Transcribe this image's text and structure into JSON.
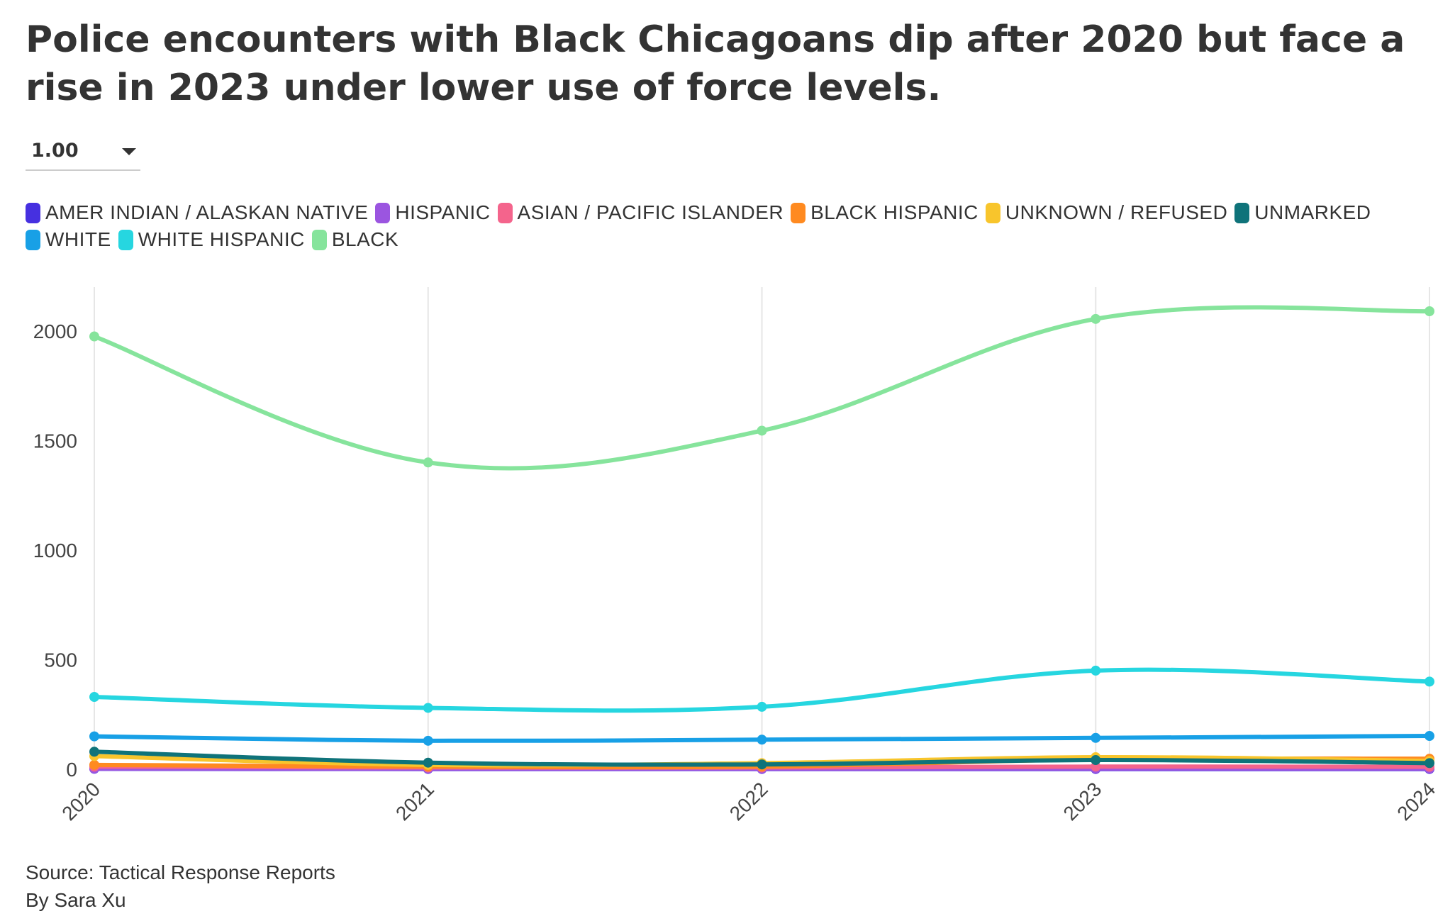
{
  "title": "Police encounters with Black Chicagoans dip after 2020 but face a rise in 2023 under lower use of force levels.",
  "filter": {
    "selected": "1.00"
  },
  "footer": {
    "source": "Source: Tactical Response Reports",
    "byline": "By Sara Xu"
  },
  "chart_data": {
    "type": "line",
    "x": [
      "2020",
      "2021",
      "2022",
      "2023",
      "2024"
    ],
    "xlabel": "",
    "ylabel": "",
    "ylim": [
      0,
      2200
    ],
    "yticks": [
      0,
      500,
      1000,
      1500,
      2000
    ],
    "grid": "vertical",
    "legend_position": "top-left",
    "series": [
      {
        "name": "AMER INDIAN / ALASKAN NATIVE",
        "color": "#4630e0",
        "values": [
          2,
          1,
          1,
          1,
          1
        ]
      },
      {
        "name": "HISPANIC",
        "color": "#9b55e0",
        "values": [
          3,
          2,
          2,
          3,
          3
        ]
      },
      {
        "name": "ASIAN / PACIFIC ISLANDER",
        "color": "#f4648c",
        "values": [
          12,
          8,
          8,
          12,
          11
        ]
      },
      {
        "name": "BLACK HISPANIC",
        "color": "#ff8a20",
        "values": [
          20,
          12,
          12,
          45,
          48
        ]
      },
      {
        "name": "UNKNOWN / REFUSED",
        "color": "#f8c52c",
        "values": [
          60,
          20,
          28,
          55,
          38
        ]
      },
      {
        "name": "UNMARKED",
        "color": "#0f737a",
        "values": [
          80,
          30,
          22,
          42,
          28
        ]
      },
      {
        "name": "WHITE",
        "color": "#18a0e6",
        "values": [
          150,
          130,
          135,
          143,
          152
        ]
      },
      {
        "name": "WHITE HISPANIC",
        "color": "#26d6e0",
        "values": [
          330,
          280,
          285,
          450,
          400
        ]
      },
      {
        "name": "BLACK",
        "color": "#86e49c",
        "values": [
          1975,
          1400,
          1545,
          2055,
          2090
        ]
      }
    ]
  }
}
